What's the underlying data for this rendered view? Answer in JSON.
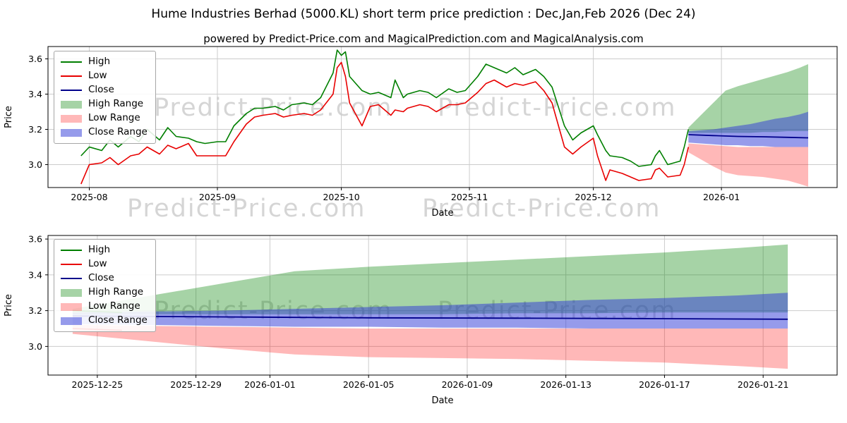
{
  "title": "Hume Industries Berhad (5000.KL) short term price prediction : Dec,Jan,Feb 2026 (Dec 24)",
  "subtitle": "powered by Predict-Price.com and MagicalPrediction.com and MagicalAnalysis.com",
  "watermark": "Predict-Price.com",
  "colors": {
    "high": "#007f00",
    "low": "#e80000",
    "close": "#00008b",
    "high_range": "rgba(0,128,0,0.35)",
    "low_range": "rgba(255,0,0,0.28)",
    "close_range": "rgba(45,55,215,0.5)",
    "grid": "#cccccc"
  },
  "legend": [
    {
      "label": "High",
      "type": "line",
      "color": "#007f00"
    },
    {
      "label": "Low",
      "type": "line",
      "color": "#e80000"
    },
    {
      "label": "Close",
      "type": "line",
      "color": "#00008b"
    },
    {
      "label": "High Range",
      "type": "band",
      "color": "rgba(0,128,0,0.35)"
    },
    {
      "label": "Low Range",
      "type": "band",
      "color": "rgba(255,0,0,0.28)"
    },
    {
      "label": "Close Range",
      "type": "band",
      "color": "rgba(45,55,215,0.5)"
    }
  ],
  "chart_data": [
    {
      "name": "price-history-and-prediction",
      "type": "line",
      "xlabel": "Date",
      "ylabel": "Price",
      "xlim": [
        "2025-07-22",
        "2026-01-29"
      ],
      "ylim": [
        2.87,
        3.67
      ],
      "yticks": [
        3.0,
        3.2,
        3.4,
        3.6
      ],
      "xticks": [
        {
          "date": "2025-08-01",
          "label": "2025-08"
        },
        {
          "date": "2025-09-01",
          "label": "2025-09"
        },
        {
          "date": "2025-10-01",
          "label": "2025-10"
        },
        {
          "date": "2025-11-01",
          "label": "2025-11"
        },
        {
          "date": "2025-12-01",
          "label": "2025-12"
        },
        {
          "date": "2026-01-01",
          "label": "2026-01"
        }
      ],
      "grid": true,
      "legend_position": "top-left",
      "bands": [
        {
          "name": "high-range-band",
          "color": "rgba(0,128,0,0.35)",
          "dates": [
            "2025-12-24",
            "2025-12-27",
            "2025-12-30",
            "2026-01-02",
            "2026-01-05",
            "2026-01-08",
            "2026-01-11",
            "2026-01-14",
            "2026-01-17",
            "2026-01-20",
            "2026-01-22"
          ],
          "upper": [
            3.21,
            3.28,
            3.35,
            3.42,
            3.445,
            3.465,
            3.485,
            3.505,
            3.525,
            3.55,
            3.57
          ],
          "lower": [
            3.18,
            3.18,
            3.18,
            3.18,
            3.18,
            3.18,
            3.185,
            3.185,
            3.19,
            3.19,
            3.19
          ]
        },
        {
          "name": "low-range-band",
          "color": "rgba(255,0,0,0.28)",
          "dates": [
            "2025-12-24",
            "2025-12-27",
            "2025-12-30",
            "2026-01-02",
            "2026-01-05",
            "2026-01-08",
            "2026-01-11",
            "2026-01-14",
            "2026-01-17",
            "2026-01-20",
            "2026-01-22"
          ],
          "upper": [
            3.12,
            3.115,
            3.11,
            3.105,
            3.1,
            3.1,
            3.1,
            3.1,
            3.1,
            3.1,
            3.1
          ],
          "lower": [
            3.07,
            3.03,
            2.99,
            2.955,
            2.94,
            2.935,
            2.93,
            2.92,
            2.91,
            2.89,
            2.875
          ]
        },
        {
          "name": "close-range-band",
          "color": "rgba(45,55,215,0.5)",
          "dates": [
            "2025-12-24",
            "2025-12-27",
            "2025-12-30",
            "2026-01-02",
            "2026-01-05",
            "2026-01-08",
            "2026-01-11",
            "2026-01-14",
            "2026-01-17",
            "2026-01-20",
            "2026-01-22"
          ],
          "upper": [
            3.19,
            3.195,
            3.2,
            3.21,
            3.22,
            3.23,
            3.245,
            3.26,
            3.27,
            3.285,
            3.3
          ],
          "lower": [
            3.125,
            3.12,
            3.115,
            3.11,
            3.11,
            3.105,
            3.105,
            3.1,
            3.1,
            3.1,
            3.1
          ]
        }
      ],
      "series": [
        {
          "name": "high-line",
          "color": "#007f00",
          "width": 1.6,
          "dates": [
            "2025-07-30",
            "2025-08-01",
            "2025-08-04",
            "2025-08-06",
            "2025-08-08",
            "2025-08-11",
            "2025-08-13",
            "2025-08-15",
            "2025-08-18",
            "2025-08-20",
            "2025-08-22",
            "2025-08-25",
            "2025-08-27",
            "2025-08-29",
            "2025-09-01",
            "2025-09-03",
            "2025-09-05",
            "2025-09-08",
            "2025-09-10",
            "2025-09-12",
            "2025-09-15",
            "2025-09-17",
            "2025-09-19",
            "2025-09-22",
            "2025-09-24",
            "2025-09-26",
            "2025-09-29",
            "2025-09-30",
            "2025-10-01",
            "2025-10-02",
            "2025-10-03",
            "2025-10-06",
            "2025-10-08",
            "2025-10-10",
            "2025-10-13",
            "2025-10-14",
            "2025-10-16",
            "2025-10-17",
            "2025-10-20",
            "2025-10-22",
            "2025-10-24",
            "2025-10-27",
            "2025-10-29",
            "2025-10-31",
            "2025-11-03",
            "2025-11-05",
            "2025-11-07",
            "2025-11-10",
            "2025-11-12",
            "2025-11-14",
            "2025-11-17",
            "2025-11-19",
            "2025-11-21",
            "2025-11-24",
            "2025-11-26",
            "2025-11-28",
            "2025-12-01",
            "2025-12-02",
            "2025-12-04",
            "2025-12-05",
            "2025-12-08",
            "2025-12-10",
            "2025-12-12",
            "2025-12-15",
            "2025-12-16",
            "2025-12-17",
            "2025-12-19",
            "2025-12-22",
            "2025-12-23",
            "2025-12-24"
          ],
          "values": [
            3.05,
            3.1,
            3.08,
            3.14,
            3.1,
            3.16,
            3.13,
            3.2,
            3.14,
            3.21,
            3.16,
            3.15,
            3.13,
            3.12,
            3.13,
            3.13,
            3.22,
            3.29,
            3.32,
            3.32,
            3.33,
            3.31,
            3.34,
            3.35,
            3.34,
            3.38,
            3.52,
            3.65,
            3.62,
            3.64,
            3.5,
            3.42,
            3.4,
            3.41,
            3.38,
            3.48,
            3.38,
            3.4,
            3.42,
            3.41,
            3.38,
            3.43,
            3.41,
            3.42,
            3.5,
            3.57,
            3.55,
            3.52,
            3.55,
            3.51,
            3.54,
            3.5,
            3.44,
            3.22,
            3.14,
            3.18,
            3.22,
            3.17,
            3.08,
            3.05,
            3.04,
            3.02,
            2.99,
            3.0,
            3.05,
            3.08,
            3.0,
            3.02,
            3.1,
            3.2
          ]
        },
        {
          "name": "low-line",
          "color": "#e80000",
          "width": 1.6,
          "dates": [
            "2025-07-30",
            "2025-08-01",
            "2025-08-04",
            "2025-08-06",
            "2025-08-08",
            "2025-08-11",
            "2025-08-13",
            "2025-08-15",
            "2025-08-18",
            "2025-08-20",
            "2025-08-22",
            "2025-08-25",
            "2025-08-27",
            "2025-08-29",
            "2025-09-01",
            "2025-09-03",
            "2025-09-05",
            "2025-09-08",
            "2025-09-10",
            "2025-09-12",
            "2025-09-15",
            "2025-09-17",
            "2025-09-19",
            "2025-09-22",
            "2025-09-24",
            "2025-09-26",
            "2025-09-29",
            "2025-09-30",
            "2025-10-01",
            "2025-10-02",
            "2025-10-03",
            "2025-10-06",
            "2025-10-08",
            "2025-10-10",
            "2025-10-13",
            "2025-10-14",
            "2025-10-16",
            "2025-10-17",
            "2025-10-20",
            "2025-10-22",
            "2025-10-24",
            "2025-10-27",
            "2025-10-29",
            "2025-10-31",
            "2025-11-03",
            "2025-11-05",
            "2025-11-07",
            "2025-11-10",
            "2025-11-12",
            "2025-11-14",
            "2025-11-17",
            "2025-11-19",
            "2025-11-21",
            "2025-11-24",
            "2025-11-26",
            "2025-11-28",
            "2025-12-01",
            "2025-12-02",
            "2025-12-04",
            "2025-12-05",
            "2025-12-08",
            "2025-12-10",
            "2025-12-12",
            "2025-12-15",
            "2025-12-16",
            "2025-12-17",
            "2025-12-19",
            "2025-12-22",
            "2025-12-23",
            "2025-12-24"
          ],
          "values": [
            2.89,
            3.0,
            3.01,
            3.04,
            3.0,
            3.05,
            3.06,
            3.1,
            3.06,
            3.11,
            3.09,
            3.12,
            3.05,
            3.05,
            3.05,
            3.05,
            3.13,
            3.23,
            3.27,
            3.28,
            3.29,
            3.27,
            3.28,
            3.29,
            3.28,
            3.31,
            3.4,
            3.55,
            3.58,
            3.5,
            3.35,
            3.22,
            3.33,
            3.34,
            3.28,
            3.31,
            3.3,
            3.32,
            3.34,
            3.33,
            3.3,
            3.34,
            3.34,
            3.35,
            3.41,
            3.46,
            3.48,
            3.44,
            3.46,
            3.45,
            3.47,
            3.42,
            3.35,
            3.1,
            3.06,
            3.1,
            3.15,
            3.05,
            2.91,
            2.97,
            2.95,
            2.93,
            2.91,
            2.92,
            2.97,
            2.98,
            2.93,
            2.94,
            3.0,
            3.1
          ]
        },
        {
          "name": "close-prediction-line",
          "color": "#00008b",
          "width": 1.8,
          "dates": [
            "2025-12-24",
            "2025-12-30",
            "2026-01-05",
            "2026-01-11",
            "2026-01-17",
            "2026-01-22"
          ],
          "values": [
            3.17,
            3.165,
            3.16,
            3.158,
            3.155,
            3.152
          ]
        }
      ]
    },
    {
      "name": "prediction-zoom",
      "type": "line",
      "xlabel": "Date",
      "ylabel": "Price",
      "xlim": [
        "2025-12-23",
        "2026-01-24"
      ],
      "ylim": [
        2.84,
        3.62
      ],
      "yticks": [
        3.0,
        3.2,
        3.4,
        3.6
      ],
      "xticks": [
        {
          "date": "2025-12-25",
          "label": "2025-12-25"
        },
        {
          "date": "2025-12-29",
          "label": "2025-12-29"
        },
        {
          "date": "2026-01-01",
          "label": "2026-01-01"
        },
        {
          "date": "2026-01-05",
          "label": "2026-01-05"
        },
        {
          "date": "2026-01-09",
          "label": "2026-01-09"
        },
        {
          "date": "2026-01-13",
          "label": "2026-01-13"
        },
        {
          "date": "2026-01-17",
          "label": "2026-01-17"
        },
        {
          "date": "2026-01-21",
          "label": "2026-01-21"
        }
      ],
      "grid": true,
      "legend_position": "top-left",
      "bands": [
        {
          "name": "high-range-band",
          "color": "rgba(0,128,0,0.35)",
          "dates": [
            "2025-12-24",
            "2025-12-27",
            "2025-12-30",
            "2026-01-02",
            "2026-01-05",
            "2026-01-08",
            "2026-01-11",
            "2026-01-14",
            "2026-01-17",
            "2026-01-20",
            "2026-01-22"
          ],
          "upper": [
            3.21,
            3.28,
            3.35,
            3.42,
            3.445,
            3.465,
            3.485,
            3.505,
            3.525,
            3.55,
            3.57
          ],
          "lower": [
            3.18,
            3.18,
            3.18,
            3.18,
            3.18,
            3.18,
            3.185,
            3.185,
            3.19,
            3.19,
            3.19
          ]
        },
        {
          "name": "low-range-band",
          "color": "rgba(255,0,0,0.28)",
          "dates": [
            "2025-12-24",
            "2025-12-27",
            "2025-12-30",
            "2026-01-02",
            "2026-01-05",
            "2026-01-08",
            "2026-01-11",
            "2026-01-14",
            "2026-01-17",
            "2026-01-20",
            "2026-01-22"
          ],
          "upper": [
            3.12,
            3.115,
            3.11,
            3.105,
            3.1,
            3.1,
            3.1,
            3.1,
            3.1,
            3.1,
            3.1
          ],
          "lower": [
            3.07,
            3.03,
            2.99,
            2.955,
            2.94,
            2.935,
            2.93,
            2.92,
            2.91,
            2.89,
            2.875
          ]
        },
        {
          "name": "close-range-band",
          "color": "rgba(45,55,215,0.5)",
          "dates": [
            "2025-12-24",
            "2025-12-27",
            "2025-12-30",
            "2026-01-02",
            "2026-01-05",
            "2026-01-08",
            "2026-01-11",
            "2026-01-14",
            "2026-01-17",
            "2026-01-20",
            "2026-01-22"
          ],
          "upper": [
            3.19,
            3.195,
            3.2,
            3.21,
            3.22,
            3.23,
            3.245,
            3.26,
            3.27,
            3.285,
            3.3
          ],
          "lower": [
            3.125,
            3.12,
            3.115,
            3.11,
            3.11,
            3.105,
            3.105,
            3.1,
            3.1,
            3.1,
            3.1
          ]
        }
      ],
      "series": [
        {
          "name": "high-recent-line",
          "color": "#007f00",
          "width": 1.6,
          "dates": [
            "2025-12-24",
            "2025-12-26"
          ],
          "values": [
            3.2,
            3.19
          ]
        },
        {
          "name": "low-recent-line",
          "color": "#e80000",
          "width": 1.6,
          "dates": [
            "2025-12-24",
            "2025-12-26"
          ],
          "values": [
            3.1,
            3.09
          ]
        },
        {
          "name": "close-prediction-line",
          "color": "#00008b",
          "width": 1.8,
          "dates": [
            "2025-12-24",
            "2025-12-30",
            "2026-01-05",
            "2026-01-11",
            "2026-01-17",
            "2026-01-22"
          ],
          "values": [
            3.17,
            3.165,
            3.16,
            3.158,
            3.155,
            3.152
          ]
        }
      ]
    }
  ]
}
